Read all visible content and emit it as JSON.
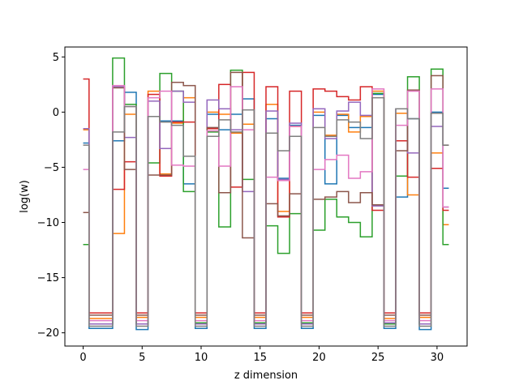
{
  "chart_data": {
    "type": "line",
    "drawstyle": "steps-mid",
    "xlabel": "z dimension",
    "ylabel": "log(w)",
    "xlim": [
      -1.55,
      32.55
    ],
    "ylim": [
      -21.2,
      5.9
    ],
    "xticks": [
      0,
      5,
      10,
      15,
      20,
      25,
      30
    ],
    "yticks": [
      -20,
      -15,
      -10,
      -5,
      0,
      5
    ],
    "grid": false,
    "x": [
      0,
      1,
      2,
      3,
      4,
      5,
      6,
      7,
      8,
      9,
      10,
      11,
      12,
      13,
      14,
      15,
      16,
      17,
      18,
      19,
      20,
      21,
      22,
      23,
      24,
      25,
      26,
      27,
      28,
      29,
      30,
      31
    ],
    "series": [
      {
        "color": "#1f77b4",
        "values": [
          -2.8,
          -19.6,
          -19.6,
          -2.6,
          1.8,
          -19.7,
          -0.4,
          -0.8,
          -0.8,
          -6.5,
          -19.6,
          -0.2,
          -1.6,
          -0.2,
          1.2,
          -19.6,
          -0.6,
          -6.0,
          -1.2,
          -19.6,
          -0.3,
          -6.5,
          -0.3,
          -1.4,
          -1.4,
          1.6,
          -19.6,
          -7.7,
          -0.6,
          -19.7,
          0.0,
          -6.9
        ]
      },
      {
        "color": "#ff7f0e",
        "values": [
          -1.6,
          -18.7,
          -18.7,
          -11.0,
          -0.2,
          -18.6,
          1.9,
          -5.6,
          -1.0,
          1.3,
          -18.6,
          0.0,
          -0.2,
          -1.9,
          -1.1,
          -18.6,
          0.7,
          -9.0,
          -1.3,
          -18.6,
          0.0,
          -2.1,
          -0.2,
          -1.8,
          -0.4,
          1.9,
          -18.7,
          -0.1,
          -7.5,
          -18.6,
          -3.7,
          -10.2
        ]
      },
      {
        "color": "#2ca02c",
        "values": [
          -12.0,
          -19.2,
          -19.2,
          4.9,
          0.7,
          -19.2,
          -4.6,
          3.5,
          1.9,
          -7.2,
          -19.1,
          -1.8,
          -10.4,
          3.8,
          -6.1,
          -19.1,
          -10.3,
          -12.8,
          -9.2,
          -19.1,
          -10.7,
          -7.9,
          -9.5,
          -10.0,
          -11.3,
          1.7,
          -19.2,
          -5.8,
          3.2,
          -19.2,
          3.9,
          -12.0
        ]
      },
      {
        "color": "#d62728",
        "values": [
          3.0,
          -18.2,
          -18.2,
          -7.0,
          -4.5,
          -18.2,
          1.6,
          -5.8,
          -0.9,
          -0.9,
          -18.2,
          -1.5,
          2.5,
          -6.8,
          3.6,
          -18.2,
          2.3,
          -9.5,
          1.9,
          -18.2,
          2.1,
          1.9,
          1.4,
          1.1,
          2.3,
          -8.9,
          -18.2,
          -2.6,
          -5.9,
          -18.2,
          -5.1,
          -8.9
        ]
      },
      {
        "color": "#9467bd",
        "values": [
          -1.5,
          -19.2,
          -19.2,
          2.3,
          -2.3,
          -19.2,
          1.0,
          -3.3,
          1.9,
          0.9,
          -19.2,
          1.1,
          0.3,
          -1.6,
          -7.2,
          -19.2,
          0.1,
          -6.1,
          -1.0,
          -19.2,
          0.3,
          -2.4,
          0.1,
          0.9,
          -0.3,
          -8.5,
          -19.1,
          0.3,
          -3.7,
          -19.2,
          -1.3,
          -8.6
        ]
      },
      {
        "color": "#8c564b",
        "values": [
          -9.1,
          -18.4,
          -18.4,
          2.2,
          -5.2,
          -18.4,
          -5.7,
          -5.7,
          2.7,
          2.4,
          -18.4,
          -1.4,
          -7.3,
          3.6,
          -11.4,
          -18.4,
          -8.3,
          -9.4,
          -7.4,
          -18.4,
          -7.9,
          -7.7,
          -7.2,
          -8.2,
          -7.3,
          -8.4,
          -18.4,
          -3.5,
          2.0,
          -18.4,
          3.3,
          -3.0
        ]
      },
      {
        "color": "#e377c2",
        "values": [
          -5.2,
          -18.9,
          -18.9,
          2.4,
          0.5,
          -18.9,
          1.3,
          1.9,
          -4.8,
          -4.9,
          -18.9,
          -1.7,
          -4.9,
          2.3,
          -1.6,
          -18.9,
          -5.9,
          -6.2,
          -1.3,
          -18.9,
          -5.2,
          -4.3,
          -3.9,
          -6.0,
          -5.4,
          2.1,
          -18.9,
          -1.2,
          1.9,
          -18.9,
          2.1,
          -8.6
        ]
      },
      {
        "color": "#7f7f7f",
        "values": [
          -3.0,
          -19.4,
          -19.4,
          -1.8,
          0.5,
          -19.4,
          -0.4,
          -0.9,
          -1.2,
          -4.0,
          -19.4,
          -2.2,
          -0.7,
          -1.8,
          0.2,
          -19.4,
          -1.9,
          -3.5,
          -2.2,
          -19.4,
          -1.4,
          -2.2,
          -0.7,
          -0.9,
          -2.4,
          1.3,
          -19.4,
          0.3,
          -0.6,
          -19.4,
          -0.1,
          -3.0
        ]
      }
    ]
  }
}
